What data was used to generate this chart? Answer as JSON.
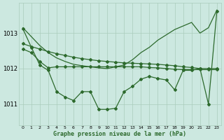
{
  "x": [
    0,
    1,
    2,
    3,
    4,
    5,
    6,
    7,
    8,
    9,
    10,
    11,
    12,
    13,
    14,
    15,
    16,
    17,
    18,
    19,
    20,
    21,
    22,
    23
  ],
  "line_diagonal": [
    1013.15,
    1012.9,
    1012.65,
    1012.45,
    1012.3,
    1012.2,
    1012.12,
    1012.08,
    1012.05,
    1012.02,
    1012.0,
    1012.05,
    1012.1,
    1012.25,
    1012.45,
    1012.6,
    1012.8,
    1012.95,
    1013.1,
    1013.2,
    1013.3,
    1013.0,
    1013.15,
    1013.65
  ],
  "line_flat_upper": [
    1012.7,
    1012.62,
    1012.55,
    1012.48,
    1012.42,
    1012.37,
    1012.32,
    1012.28,
    1012.25,
    1012.22,
    1012.2,
    1012.18,
    1012.16,
    1012.15,
    1012.14,
    1012.13,
    1012.12,
    1012.1,
    1012.08,
    1012.05,
    1012.03,
    1012.0,
    1012.0,
    1012.0
  ],
  "line_flat_lower": [
    1012.55,
    1012.45,
    1012.2,
    1012.02,
    1012.05,
    1012.05,
    1012.05,
    1012.05,
    1012.05,
    1012.05,
    1012.05,
    1012.05,
    1012.05,
    1012.05,
    1012.05,
    1012.03,
    1012.02,
    1012.0,
    1011.98,
    1011.97,
    1011.97,
    1011.97,
    1011.97,
    1011.97
  ],
  "line_zigzag": [
    1013.12,
    1012.6,
    1012.1,
    1011.95,
    1011.35,
    1011.2,
    1011.1,
    1011.35,
    1011.35,
    1010.85,
    1010.85,
    1010.88,
    1011.35,
    1011.5,
    1011.7,
    1011.78,
    1011.72,
    1011.68,
    1011.4,
    1011.95,
    1011.95,
    1012.0,
    1011.0,
    1013.62
  ],
  "line_color": "#2d6a2d",
  "bg_color": "#cce8e0",
  "grid_color": "#aaccbb",
  "xlabel": "Graphe pression niveau de la mer (hPa)",
  "yticks": [
    1011,
    1012,
    1013
  ],
  "ylim": [
    1010.4,
    1013.85
  ],
  "xlim": [
    -0.5,
    23.5
  ]
}
